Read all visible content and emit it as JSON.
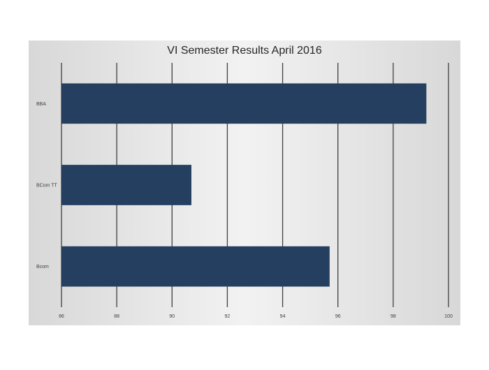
{
  "chart_data": {
    "type": "bar",
    "orientation": "horizontal",
    "title": "VI Semester Results April 2016",
    "categories": [
      "BBA",
      "BCom TT",
      "Bcom"
    ],
    "values": [
      99.2,
      90.7,
      95.7
    ],
    "xlabel": "",
    "ylabel": "",
    "xlim": [
      86,
      100
    ],
    "xticks": [
      "86",
      "88",
      "90",
      "92",
      "94",
      "96",
      "98",
      "100"
    ],
    "grid": true,
    "legend": "none",
    "colors": {
      "bar": "#243F60",
      "background": "#E4E4E4",
      "grid": "#3F3F3F"
    }
  }
}
